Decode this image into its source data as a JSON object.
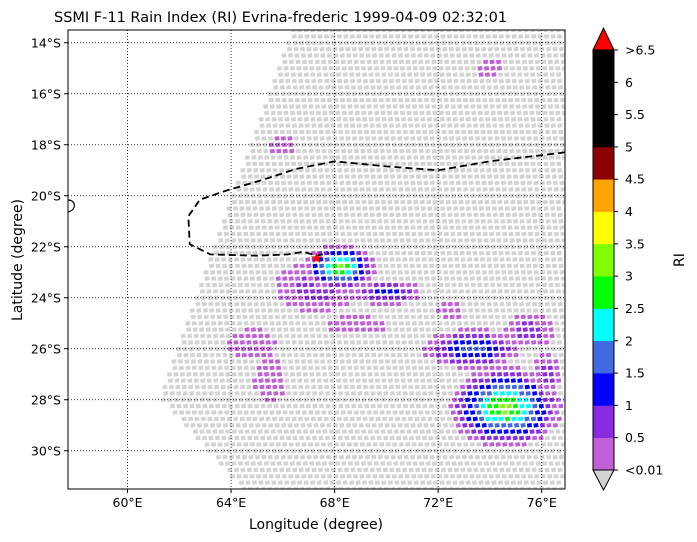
{
  "chart_data": {
    "type": "heatmap",
    "title": "SSMI F-11 Rain Index (RI) Evrina-frederic 1999-04-09 02:32:01",
    "xlabel": "Longitude (degree)",
    "ylabel": "Latitude (degree)",
    "xlim": [
      57.7,
      76.9
    ],
    "ylim": [
      -31.5,
      -13.5
    ],
    "x_ticks": [
      {
        "value": 60,
        "label": "60°E"
      },
      {
        "value": 64,
        "label": "64°E"
      },
      {
        "value": 68,
        "label": "68°E"
      },
      {
        "value": 72,
        "label": "72°E"
      },
      {
        "value": 76,
        "label": "76°E"
      }
    ],
    "y_ticks": [
      {
        "value": -14,
        "label": "14°S"
      },
      {
        "value": -16,
        "label": "16°S"
      },
      {
        "value": -18,
        "label": "18°S"
      },
      {
        "value": -20,
        "label": "20°S"
      },
      {
        "value": -22,
        "label": "22°S"
      },
      {
        "value": -24,
        "label": "24°S"
      },
      {
        "value": -26,
        "label": "26°S"
      },
      {
        "value": -28,
        "label": "28°S"
      },
      {
        "value": -30,
        "label": "30°S"
      }
    ],
    "grid": "dotted",
    "colorbar": {
      "label": "RI",
      "tick_labels": [
        "<0.01",
        "0.5",
        "1",
        "1.5",
        "2",
        "2.5",
        "3",
        "3.5",
        "4",
        "4.5",
        "5",
        "5.5",
        "6",
        ">6.5"
      ],
      "colors": [
        "#c060d8",
        "#8a2be2",
        "#0000ff",
        "#4169e1",
        "#00ffff",
        "#00ff00",
        "#7fff00",
        "#ffff00",
        "#ffa500",
        "#8b0000",
        "#000000",
        "#000000",
        "#000000"
      ],
      "extend_low_color": "#d3d3d3",
      "extend_high_color": "#ff0000",
      "no_rain_color": "#d3d3d3"
    },
    "storm_center": {
      "lon": 67.3,
      "lat": -22.45,
      "marker": "star",
      "color": "#ff0000"
    },
    "track": [
      [
        76.9,
        -18.3
      ],
      [
        74,
        -18.65
      ],
      [
        72,
        -19.0
      ],
      [
        70,
        -18.85
      ],
      [
        68,
        -18.65
      ],
      [
        66.5,
        -18.95
      ],
      [
        65.3,
        -19.35
      ],
      [
        63.8,
        -19.8
      ],
      [
        62.8,
        -20.15
      ],
      [
        62.35,
        -20.8
      ],
      [
        62.4,
        -21.9
      ],
      [
        63.2,
        -22.3
      ],
      [
        65,
        -22.35
      ],
      [
        66.2,
        -22.3
      ],
      [
        66.8,
        -22.2
      ],
      [
        67.3,
        -22.35
      ],
      [
        67.8,
        -22.25
      ]
    ],
    "swath": {
      "left_edge": [
        [
          66.4,
          -13.5
        ],
        [
          61.3,
          -27.9
        ],
        [
          64.5,
          -31.5
        ]
      ],
      "right_edge": [
        [
          76.9,
          -13.5
        ],
        [
          76.9,
          -31.5
        ]
      ]
    },
    "rain_regions": [
      {
        "lon": 66.0,
        "lat": -18.0,
        "rx": 0.5,
        "ry": 0.5,
        "levels": [
          0,
          0
        ]
      },
      {
        "lon": 64.8,
        "lat": -25.8,
        "rx": 0.9,
        "ry": 0.6,
        "levels": [
          0,
          0
        ]
      },
      {
        "lon": 65.5,
        "lat": -27.2,
        "rx": 0.6,
        "ry": 1.0,
        "levels": [
          0,
          0
        ]
      },
      {
        "lon": 67.3,
        "lat": -23.6,
        "rx": 1.6,
        "ry": 1.0,
        "levels": [
          0,
          1
        ]
      },
      {
        "lon": 68.2,
        "lat": -22.8,
        "rx": 1.4,
        "ry": 0.9,
        "levels": [
          0,
          1,
          2,
          3,
          4,
          5,
          6
        ]
      },
      {
        "lon": 70.0,
        "lat": -23.8,
        "rx": 1.4,
        "ry": 0.5,
        "levels": [
          0,
          1,
          2
        ]
      },
      {
        "lon": 68.8,
        "lat": -25.1,
        "rx": 1.2,
        "ry": 0.4,
        "levels": [
          0,
          0
        ]
      },
      {
        "lon": 72.5,
        "lat": -24.5,
        "rx": 0.5,
        "ry": 0.5,
        "levels": [
          0,
          0
        ]
      },
      {
        "lon": 73.3,
        "lat": -26.0,
        "rx": 1.9,
        "ry": 0.8,
        "levels": [
          0,
          1,
          2,
          3
        ]
      },
      {
        "lon": 75.5,
        "lat": -25.3,
        "rx": 1.0,
        "ry": 0.7,
        "levels": [
          0,
          1
        ]
      },
      {
        "lon": 74.6,
        "lat": -28.3,
        "rx": 2.2,
        "ry": 1.6,
        "levels": [
          0,
          1,
          2,
          3,
          4,
          5,
          6
        ]
      },
      {
        "lon": 76.2,
        "lat": -27.0,
        "rx": 0.6,
        "ry": 0.8,
        "levels": [
          0,
          1
        ]
      },
      {
        "lon": 74.0,
        "lat": -15.0,
        "rx": 0.4,
        "ry": 0.5,
        "levels": [
          0,
          0
        ]
      }
    ]
  }
}
